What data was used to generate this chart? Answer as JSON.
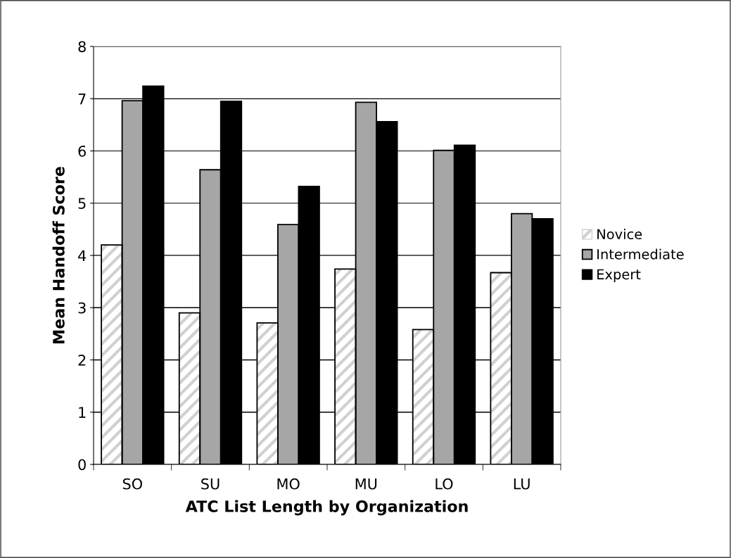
{
  "chart_data": {
    "type": "bar",
    "xlabel": "ATC List Length by Organization",
    "ylabel": "Mean Handoff Score",
    "categories": [
      "SO",
      "SU",
      "MO",
      "MU",
      "LO",
      "LU"
    ],
    "series": [
      {
        "name": "Novice",
        "color": "#d0d0d0",
        "values": [
          4.2,
          2.9,
          2.71,
          3.74,
          2.58,
          3.67
        ]
      },
      {
        "name": "Intermediate",
        "color": "#a6a6a6",
        "values": [
          6.96,
          5.64,
          4.59,
          6.93,
          6.01,
          4.8
        ]
      },
      {
        "name": "Expert",
        "color": "#000000",
        "values": [
          7.24,
          6.95,
          5.32,
          6.56,
          6.11,
          4.7
        ]
      }
    ],
    "ylim": [
      0,
      8
    ],
    "yticks": [
      0,
      1,
      2,
      3,
      4,
      5,
      6,
      7,
      8
    ],
    "grid": "y",
    "legend": "right"
  }
}
